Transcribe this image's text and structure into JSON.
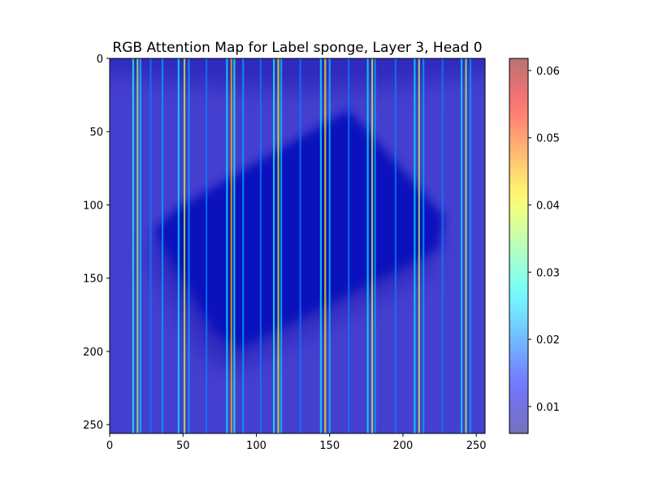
{
  "chart_data": {
    "type": "heatmap",
    "title": "RGB Attention Map for Label sponge, Layer 3, Head 0",
    "xlabel": "",
    "ylabel": "",
    "image_size": [
      256,
      256
    ],
    "xlim": [
      0,
      256
    ],
    "ylim": [
      256,
      0
    ],
    "x_ticks": [
      0,
      50,
      100,
      150,
      200,
      250
    ],
    "y_ticks": [
      0,
      50,
      100,
      150,
      200,
      250
    ],
    "colormap": "jet",
    "colormap_alpha": 0.5,
    "colorbar": {
      "range": [
        0.006,
        0.0618
      ],
      "ticks": [
        0.01,
        0.02,
        0.03,
        0.04,
        0.05,
        0.06
      ],
      "tick_labels": [
        "0.01",
        "0.02",
        "0.03",
        "0.04",
        "0.05",
        "0.06"
      ]
    },
    "underlying_image": {
      "object": "sponge",
      "object_outline": [
        [
          163,
          35
        ],
        [
          228,
          108
        ],
        [
          224,
          130
        ],
        [
          88,
          198
        ],
        [
          72,
          188
        ],
        [
          30,
          118
        ],
        [
          45,
          103
        ]
      ],
      "background_color": "#8a7fb0",
      "object_color": "#12208a"
    },
    "attention_column_peaks": [
      {
        "x": 16,
        "value": 0.028
      },
      {
        "x": 19,
        "value": 0.036
      },
      {
        "x": 21,
        "value": 0.024
      },
      {
        "x": 28,
        "value": 0.02
      },
      {
        "x": 36,
        "value": 0.022
      },
      {
        "x": 47,
        "value": 0.026
      },
      {
        "x": 51,
        "value": 0.038
      },
      {
        "x": 54,
        "value": 0.022
      },
      {
        "x": 66,
        "value": 0.02
      },
      {
        "x": 80,
        "value": 0.026
      },
      {
        "x": 83,
        "value": 0.045
      },
      {
        "x": 85,
        "value": 0.028
      },
      {
        "x": 91,
        "value": 0.022
      },
      {
        "x": 103,
        "value": 0.02
      },
      {
        "x": 112,
        "value": 0.028
      },
      {
        "x": 115,
        "value": 0.04
      },
      {
        "x": 117,
        "value": 0.024
      },
      {
        "x": 130,
        "value": 0.02
      },
      {
        "x": 144,
        "value": 0.026
      },
      {
        "x": 147,
        "value": 0.042
      },
      {
        "x": 150,
        "value": 0.024
      },
      {
        "x": 163,
        "value": 0.02
      },
      {
        "x": 176,
        "value": 0.026
      },
      {
        "x": 179,
        "value": 0.038
      },
      {
        "x": 181,
        "value": 0.022
      },
      {
        "x": 195,
        "value": 0.02
      },
      {
        "x": 208,
        "value": 0.026
      },
      {
        "x": 211,
        "value": 0.037
      },
      {
        "x": 214,
        "value": 0.022
      },
      {
        "x": 227,
        "value": 0.02
      },
      {
        "x": 240,
        "value": 0.026
      },
      {
        "x": 243,
        "value": 0.036
      },
      {
        "x": 246,
        "value": 0.022
      }
    ],
    "attention_baseline": 0.012
  }
}
